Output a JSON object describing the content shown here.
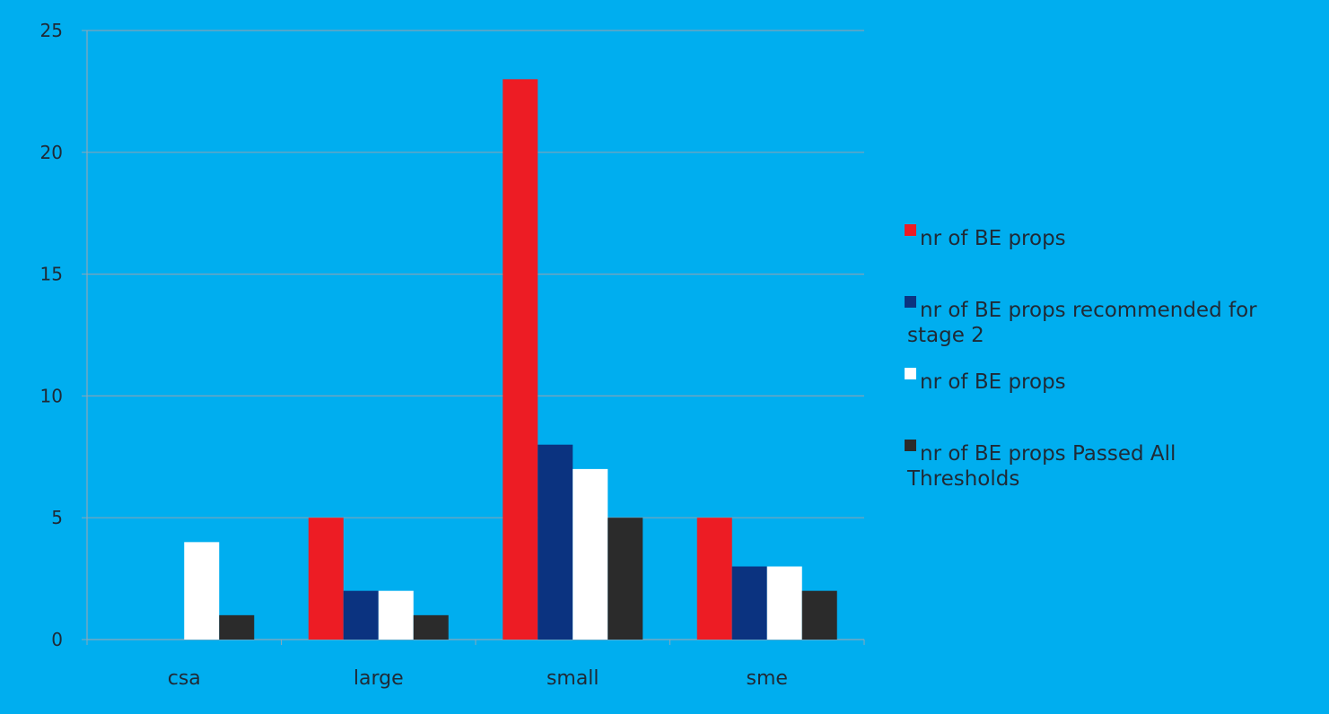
{
  "chart_data": {
    "type": "bar",
    "title": "",
    "xlabel": "",
    "ylabel": "",
    "categories": [
      "csa",
      "large",
      "small",
      "sme"
    ],
    "ylim": [
      0,
      25
    ],
    "yticks": [
      0,
      5,
      10,
      15,
      20,
      25
    ],
    "grid": true,
    "legend_position": "right",
    "series": [
      {
        "name_lines": [
          "nr of BE props"
        ],
        "color": "#ed1c24",
        "values": [
          0,
          5,
          23,
          5
        ]
      },
      {
        "name_lines": [
          "nr of BE props recommended for",
          "stage 2"
        ],
        "color": "#0b3380",
        "values": [
          0,
          2,
          8,
          3
        ]
      },
      {
        "name_lines": [
          "nr of BE props"
        ],
        "color": "#ffffff",
        "values": [
          4,
          2,
          7,
          3
        ]
      },
      {
        "name_lines": [
          "nr of BE props Passed All",
          "Thresholds"
        ],
        "color": "#2b2b2b",
        "values": [
          1,
          1,
          5,
          2
        ]
      }
    ],
    "colors": {
      "background": "#00aeef",
      "gridline": "#7fa3b8",
      "axis": "#8aa8ba",
      "text": "#1f2a36"
    }
  }
}
